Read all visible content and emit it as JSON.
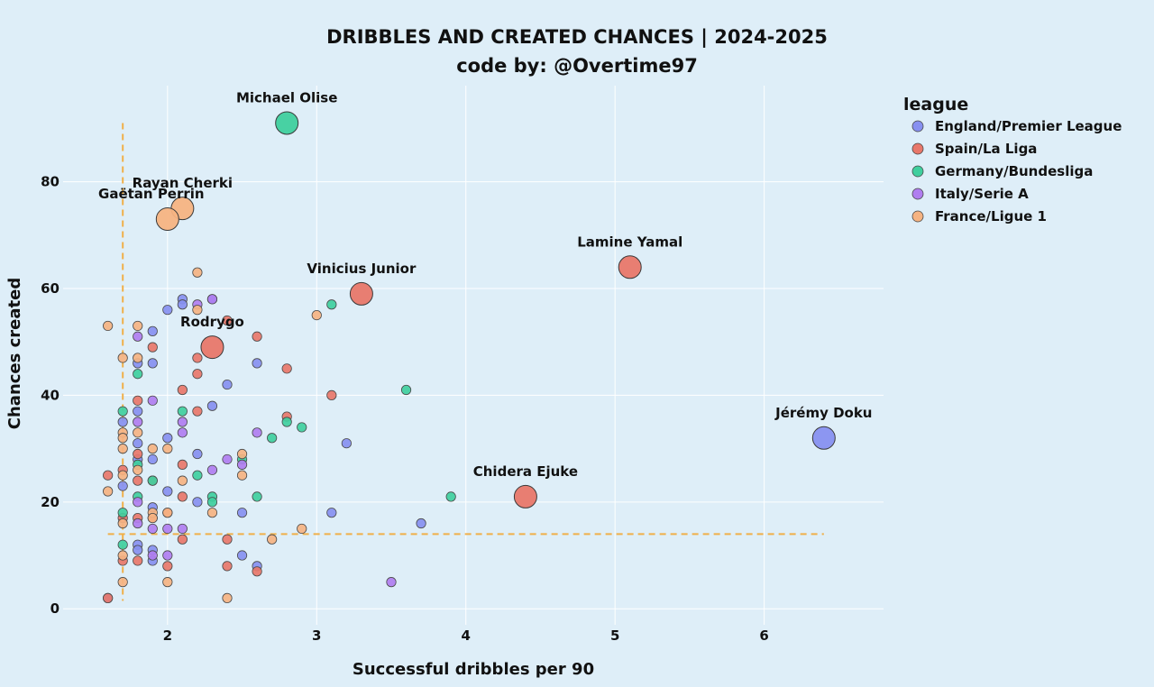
{
  "chart_data": {
    "type": "scatter",
    "title": "DRIBBLES AND CREATED CHANCES | 2024-2025",
    "subtitle": "code by: @Overtime97",
    "xlabel": "Successful dribbles per 90",
    "ylabel": "Chances created",
    "xlim": [
      1.3,
      6.8
    ],
    "ylim": [
      -3,
      98
    ],
    "xticks": [
      2,
      3,
      4,
      5,
      6
    ],
    "yticks": [
      0,
      20,
      40,
      60,
      80
    ],
    "grid": true,
    "legend": {
      "title": "league",
      "placement": "right"
    },
    "reference_lines": {
      "x": 1.7,
      "y": 14
    },
    "reference_line_color": "#f0b04a",
    "series": [
      {
        "name": "England/Premier League",
        "color": "#8790f0",
        "points": [
          [
            1.8,
            46
          ],
          [
            1.8,
            31
          ],
          [
            1.7,
            35
          ],
          [
            1.8,
            37
          ],
          [
            1.7,
            23
          ],
          [
            1.8,
            28
          ],
          [
            1.9,
            52
          ],
          [
            1.9,
            46
          ],
          [
            1.9,
            28
          ],
          [
            1.9,
            19
          ],
          [
            1.9,
            11
          ],
          [
            1.9,
            9
          ],
          [
            1.8,
            12
          ],
          [
            1.8,
            11
          ],
          [
            2.0,
            56
          ],
          [
            2.1,
            58
          ],
          [
            2.1,
            57
          ],
          [
            2.0,
            32
          ],
          [
            2.0,
            22
          ],
          [
            2.2,
            29
          ],
          [
            2.2,
            20
          ],
          [
            2.3,
            58
          ],
          [
            2.3,
            38
          ],
          [
            2.4,
            42
          ],
          [
            2.5,
            18
          ],
          [
            2.5,
            10
          ],
          [
            2.6,
            46
          ],
          [
            2.6,
            8
          ],
          [
            3.2,
            31
          ],
          [
            3.1,
            18
          ],
          [
            3.7,
            16
          ],
          [
            1.6,
            2
          ]
        ]
      },
      {
        "name": "Spain/La Liga",
        "color": "#e8776a",
        "points": [
          [
            1.6,
            25
          ],
          [
            1.7,
            26
          ],
          [
            1.7,
            17
          ],
          [
            1.8,
            39
          ],
          [
            1.8,
            29
          ],
          [
            1.8,
            24
          ],
          [
            1.8,
            17
          ],
          [
            1.8,
            9
          ],
          [
            1.9,
            49
          ],
          [
            1.9,
            24
          ],
          [
            1.9,
            17
          ],
          [
            2.0,
            18
          ],
          [
            2.0,
            8
          ],
          [
            2.1,
            41
          ],
          [
            2.1,
            27
          ],
          [
            2.1,
            21
          ],
          [
            2.1,
            13
          ],
          [
            2.2,
            47
          ],
          [
            2.2,
            44
          ],
          [
            2.2,
            37
          ],
          [
            2.4,
            54
          ],
          [
            2.4,
            13
          ],
          [
            2.4,
            8
          ],
          [
            2.6,
            51
          ],
          [
            2.6,
            7
          ],
          [
            2.8,
            45
          ],
          [
            2.8,
            36
          ],
          [
            3.1,
            40
          ],
          [
            1.6,
            2
          ],
          [
            1.7,
            9
          ]
        ]
      },
      {
        "name": "Germany/Bundesliga",
        "color": "#3fcf9e",
        "points": [
          [
            1.7,
            37
          ],
          [
            1.7,
            18
          ],
          [
            1.7,
            12
          ],
          [
            1.8,
            44
          ],
          [
            1.8,
            27
          ],
          [
            1.8,
            21
          ],
          [
            1.9,
            24
          ],
          [
            2.1,
            37
          ],
          [
            2.2,
            25
          ],
          [
            2.3,
            21
          ],
          [
            2.3,
            20
          ],
          [
            2.5,
            28
          ],
          [
            2.6,
            21
          ],
          [
            2.7,
            32
          ],
          [
            2.8,
            35
          ],
          [
            2.9,
            34
          ],
          [
            3.1,
            57
          ],
          [
            3.6,
            41
          ],
          [
            3.9,
            21
          ]
        ]
      },
      {
        "name": "Italy/Serie A",
        "color": "#b07ef0",
        "points": [
          [
            1.8,
            51
          ],
          [
            1.8,
            35
          ],
          [
            1.8,
            20
          ],
          [
            1.8,
            16
          ],
          [
            1.9,
            39
          ],
          [
            1.9,
            15
          ],
          [
            1.9,
            10
          ],
          [
            2.0,
            15
          ],
          [
            2.0,
            10
          ],
          [
            2.1,
            35
          ],
          [
            2.1,
            33
          ],
          [
            2.1,
            15
          ],
          [
            2.2,
            57
          ],
          [
            2.3,
            58
          ],
          [
            2.3,
            26
          ],
          [
            2.4,
            28
          ],
          [
            2.5,
            27
          ],
          [
            2.6,
            33
          ],
          [
            3.5,
            5
          ]
        ]
      },
      {
        "name": "France/Ligue 1",
        "color": "#f5b382",
        "points": [
          [
            1.6,
            53
          ],
          [
            1.6,
            22
          ],
          [
            1.7,
            47
          ],
          [
            1.7,
            33
          ],
          [
            1.7,
            32
          ],
          [
            1.7,
            30
          ],
          [
            1.7,
            25
          ],
          [
            1.7,
            16
          ],
          [
            1.7,
            10
          ],
          [
            1.7,
            5
          ],
          [
            1.8,
            53
          ],
          [
            1.8,
            47
          ],
          [
            1.8,
            33
          ],
          [
            1.8,
            26
          ],
          [
            1.9,
            30
          ],
          [
            1.9,
            18
          ],
          [
            1.9,
            17
          ],
          [
            2.0,
            30
          ],
          [
            2.0,
            18
          ],
          [
            2.0,
            5
          ],
          [
            2.1,
            24
          ],
          [
            2.2,
            63
          ],
          [
            2.2,
            56
          ],
          [
            2.3,
            18
          ],
          [
            2.4,
            2
          ],
          [
            2.5,
            29
          ],
          [
            2.5,
            25
          ],
          [
            2.7,
            13
          ],
          [
            2.9,
            15
          ],
          [
            3.0,
            55
          ]
        ]
      }
    ],
    "highlighted": [
      {
        "label": "Michael Olise",
        "league": "Germany/Bundesliga",
        "x": 2.8,
        "y": 91
      },
      {
        "label": "Rayan Cherki",
        "league": "France/Ligue 1",
        "x": 2.1,
        "y": 75
      },
      {
        "label": "Gaëtan Perrin",
        "league": "France/Ligue 1",
        "x": 2.0,
        "y": 73
      },
      {
        "label": "Lamine Yamal",
        "league": "Spain/La Liga",
        "x": 5.1,
        "y": 64
      },
      {
        "label": "Vinicius Junior",
        "league": "Spain/La Liga",
        "x": 3.3,
        "y": 59
      },
      {
        "label": "Rodrygo",
        "league": "Spain/La Liga",
        "x": 2.3,
        "y": 49
      },
      {
        "label": "Jérémy Doku",
        "league": "England/Premier League",
        "x": 6.4,
        "y": 32
      },
      {
        "label": "Chidera Ejuke",
        "league": "Spain/La Liga",
        "x": 4.4,
        "y": 21
      }
    ]
  }
}
